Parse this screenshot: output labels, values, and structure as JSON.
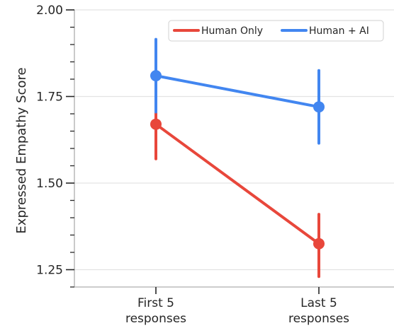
{
  "chart_data": {
    "type": "line",
    "title": "",
    "xlabel": "",
    "ylabel": "Expressed Empathy Score",
    "categories": [
      "First 5 responses",
      "Last 5 responses"
    ],
    "category_lines": [
      [
        "First 5",
        "responses"
      ],
      [
        "Last 5",
        "responses"
      ]
    ],
    "ylim": [
      1.2,
      2.0
    ],
    "yticks": [
      1.25,
      1.5,
      1.75,
      2.0
    ],
    "ytick_labels": [
      "1.25",
      "1.50",
      "1.75",
      "2.00"
    ],
    "yminor_step": 0.05,
    "grid": "horizontal",
    "legend_position": "top-right",
    "series": [
      {
        "name": "Human Only",
        "color": "#E8473B",
        "values": [
          1.67,
          1.325
        ],
        "ci_low": [
          1.57,
          1.23
        ],
        "ci_high": [
          1.765,
          1.41
        ]
      },
      {
        "name": "Human + AI",
        "color": "#4286F0",
        "values": [
          1.81,
          1.72
        ],
        "ci_low": [
          1.705,
          1.615
        ],
        "ci_high": [
          1.915,
          1.825
        ]
      }
    ]
  }
}
